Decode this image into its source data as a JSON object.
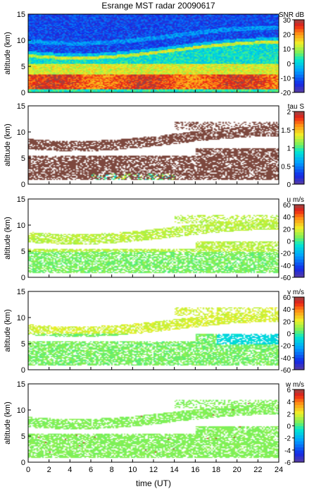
{
  "title": "Esrange MST radar 20090617",
  "x_axis": {
    "label": "time (UT)",
    "ticks": [
      0,
      2,
      4,
      6,
      8,
      10,
      12,
      14,
      16,
      18,
      20,
      22,
      24
    ],
    "range": [
      0,
      24
    ]
  },
  "chart_data": [
    {
      "type": "heatmap",
      "ylabel": "altitude (km)",
      "ylim": [
        0,
        15
      ],
      "yticks": [
        0,
        5,
        10,
        15
      ],
      "colorbar": {
        "label": "SNR dB",
        "range": [
          -20,
          30
        ],
        "ticks": [
          -20,
          -10,
          0,
          10,
          20,
          30
        ]
      },
      "field": "snr",
      "description_layers": [
        {
          "altitude_range_km": [
            0,
            1
          ],
          "typical_value": 5
        },
        {
          "altitude_range_km": [
            1,
            3.5
          ],
          "typical_value": 22
        },
        {
          "altitude_range_km": [
            3.5,
            5.5
          ],
          "typical_value": 12
        },
        {
          "altitude_range_km": [
            5.5,
            10
          ],
          "typical_value": 0
        },
        {
          "altitude_range_km": [
            10,
            15
          ],
          "typical_value": -12
        }
      ]
    },
    {
      "type": "heatmap",
      "ylabel": "altitude (km)",
      "ylim": [
        0,
        15
      ],
      "yticks": [
        0,
        5,
        10,
        15
      ],
      "colorbar": {
        "label": "tau S",
        "range": [
          0,
          2
        ],
        "ticks": [
          0,
          0.5,
          1,
          1.5,
          2
        ]
      },
      "field": "tau"
    },
    {
      "type": "heatmap",
      "ylabel": "altitude (km)",
      "ylim": [
        0,
        15
      ],
      "yticks": [
        0,
        5,
        10,
        15
      ],
      "colorbar": {
        "label": "u m/s",
        "range": [
          -60,
          60
        ],
        "ticks": [
          -60,
          -40,
          -20,
          0,
          20,
          40,
          60
        ]
      },
      "field": "u"
    },
    {
      "type": "heatmap",
      "ylabel": "altitude (km)",
      "ylim": [
        0,
        15
      ],
      "yticks": [
        0,
        5,
        10,
        15
      ],
      "colorbar": {
        "label": "v m/s",
        "range": [
          -60,
          60
        ],
        "ticks": [
          -60,
          -40,
          -20,
          0,
          20,
          40,
          60
        ]
      },
      "field": "v"
    },
    {
      "type": "heatmap",
      "ylabel": "altitude (km)",
      "ylim": [
        0,
        15
      ],
      "yticks": [
        0,
        5,
        10,
        15
      ],
      "colorbar": {
        "label": "w m/s",
        "range": [
          -6,
          6
        ],
        "ticks": [
          -6,
          -4,
          -2,
          0,
          2,
          4,
          6
        ]
      },
      "field": "w"
    }
  ]
}
